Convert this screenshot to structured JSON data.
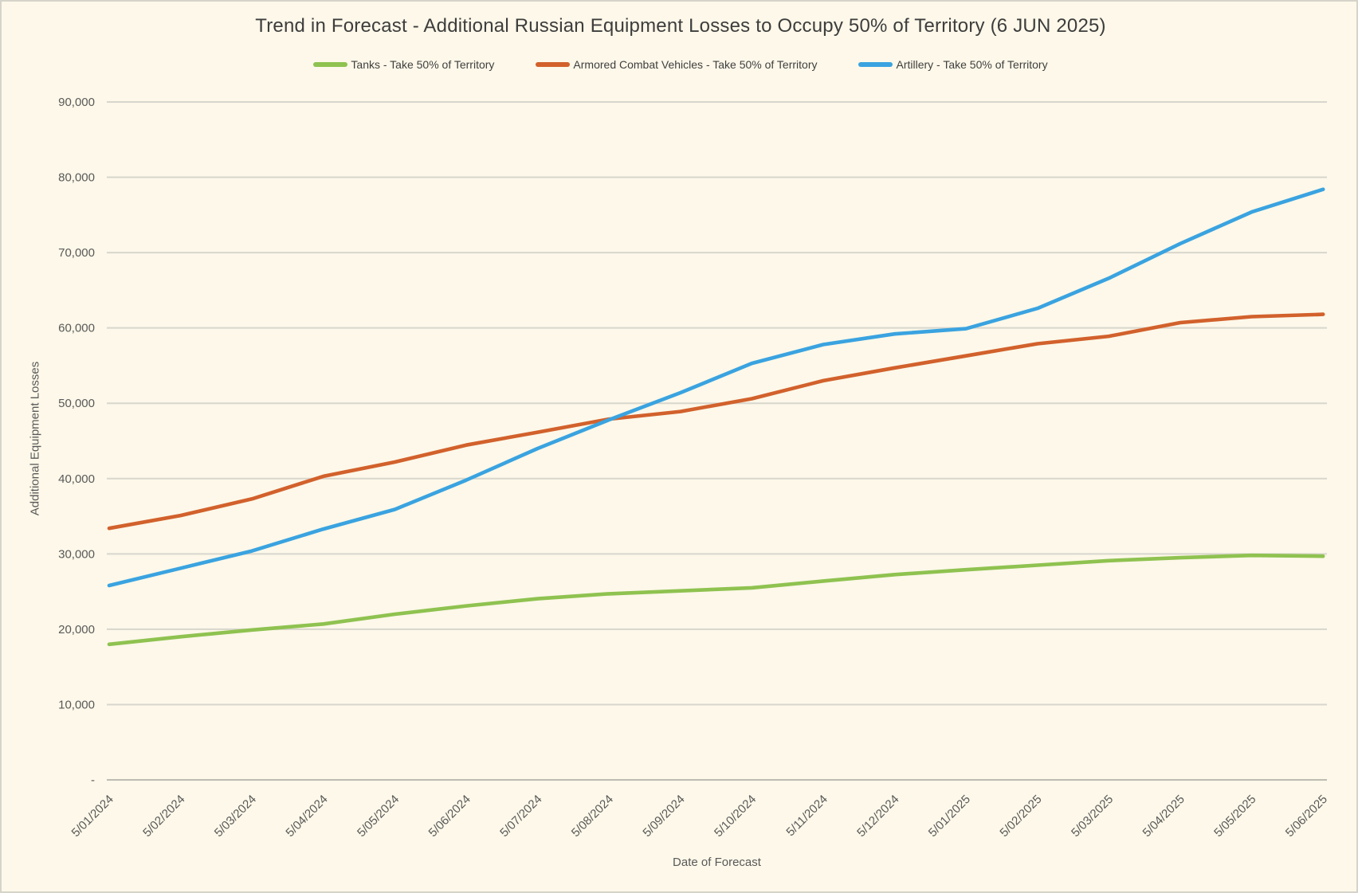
{
  "chart_data": {
    "type": "line",
    "title": "Trend in Forecast - Additional Russian Equipment Losses to Occupy 50% of Territory (6 JUN 2025)",
    "xlabel": "Date of Forecast",
    "ylabel": "Additional Equipment Losses",
    "categories": [
      "5/01/2024",
      "5/02/2024",
      "5/03/2024",
      "5/04/2024",
      "5/05/2024",
      "5/06/2024",
      "5/07/2024",
      "5/08/2024",
      "5/09/2024",
      "5/10/2024",
      "5/11/2024",
      "5/12/2024",
      "5/01/2025",
      "5/02/2025",
      "5/03/2025",
      "5/04/2025",
      "5/05/2025",
      "5/06/2025"
    ],
    "series": [
      {
        "name": "Tanks - Take 50% of Territory",
        "color": "#8fc250",
        "values": [
          18000,
          19000,
          19900,
          20700,
          22000,
          23100,
          24050,
          24700,
          25100,
          25500,
          26400,
          27250,
          27900,
          28500,
          29100,
          29500,
          29800,
          29700
        ]
      },
      {
        "name": "Armored Combat Vehicles - Take 50% of Territory",
        "color": "#d2612c",
        "values": [
          33400,
          35100,
          37300,
          40300,
          42200,
          44450,
          46150,
          47900,
          48900,
          50600,
          53000,
          54700,
          56300,
          57900,
          58900,
          60700,
          61500,
          61800
        ]
      },
      {
        "name": "Artillery - Take 50% of Territory",
        "color": "#3aa3e0",
        "values": [
          25800,
          28100,
          30400,
          33300,
          35900,
          39800,
          44000,
          47800,
          51400,
          55300,
          57800,
          59200,
          59900,
          62600,
          66600,
          71200,
          75400,
          78400
        ]
      }
    ],
    "ylim": [
      0,
      90000
    ],
    "y_tick_step": 10000,
    "y_tick_labels": [
      "-",
      "10,000",
      "20,000",
      "30,000",
      "40,000",
      "50,000",
      "60,000",
      "70,000",
      "80,000",
      "90,000"
    ],
    "grid": "horizontal",
    "legend_position": "top"
  },
  "colors": {
    "background": "#fdf8e9",
    "border": "#d5d3ca",
    "title_text": "#3d3d3d",
    "axis_text": "#595959",
    "legend_text": "#3f3f3f",
    "gridline": "#d8d6cd",
    "axis_line": "#bdbbb3"
  }
}
